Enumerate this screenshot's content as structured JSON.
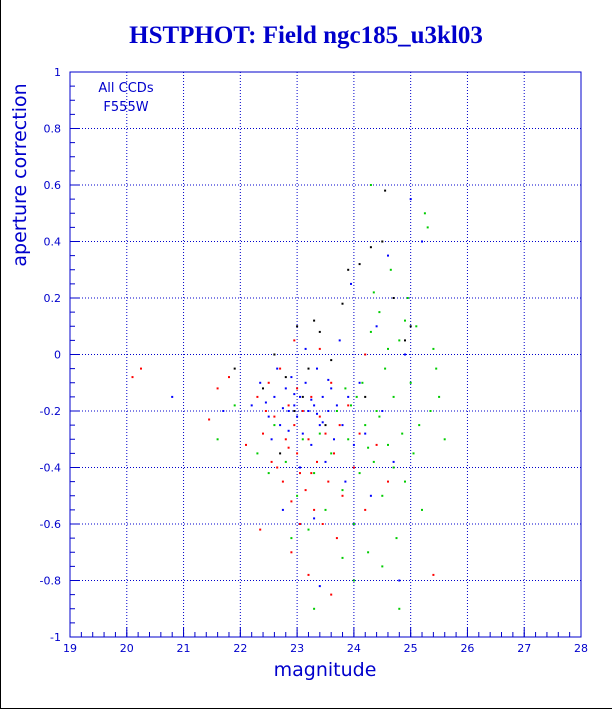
{
  "chart_data": {
    "type": "scatter",
    "title": "HSTPHOT: Field ngc185_u3kl03",
    "xlabel": "magnitude",
    "ylabel": "aperture correction",
    "xlim": [
      19,
      28
    ],
    "ylim": [
      -1,
      1
    ],
    "xticks": [
      "19",
      "20",
      "21",
      "22",
      "23",
      "24",
      "25",
      "26",
      "27",
      "28"
    ],
    "yticks": [
      "1",
      "0.8",
      "0.6",
      "0.4",
      "0.2",
      "0",
      "-0.2",
      "-0.4",
      "-0.6",
      "-0.8",
      "-1"
    ],
    "grid": true,
    "annotation": [
      "All CCDs",
      "F555W"
    ],
    "series": [
      {
        "color": "#ff0000",
        "values": [
          [
            20.1,
            -0.08
          ],
          [
            20.25,
            -0.05
          ],
          [
            21.45,
            -0.23
          ],
          [
            21.6,
            -0.12
          ],
          [
            21.8,
            -0.08
          ],
          [
            22.1,
            -0.32
          ],
          [
            22.3,
            -0.15
          ],
          [
            22.4,
            -0.28
          ],
          [
            22.5,
            -0.1
          ],
          [
            22.55,
            -0.38
          ],
          [
            22.6,
            -0.22
          ],
          [
            22.7,
            -0.05
          ],
          [
            22.75,
            -0.45
          ],
          [
            22.8,
            -0.3
          ],
          [
            22.85,
            -0.18
          ],
          [
            22.9,
            -0.52
          ],
          [
            22.95,
            -0.25
          ],
          [
            23.0,
            -0.35
          ],
          [
            23.0,
            -0.12
          ],
          [
            23.05,
            -0.42
          ],
          [
            23.1,
            -0.2
          ],
          [
            23.15,
            -0.48
          ],
          [
            23.2,
            -0.3
          ],
          [
            23.25,
            -0.15
          ],
          [
            23.3,
            -0.55
          ],
          [
            23.35,
            -0.38
          ],
          [
            23.4,
            -0.22
          ],
          [
            23.45,
            -0.6
          ],
          [
            23.5,
            -0.28
          ],
          [
            23.55,
            -0.45
          ],
          [
            23.6,
            -0.1
          ],
          [
            23.65,
            -0.35
          ],
          [
            23.7,
            -0.65
          ],
          [
            23.75,
            -0.25
          ],
          [
            23.8,
            -0.5
          ],
          [
            23.9,
            -0.18
          ],
          [
            24.0,
            -0.4
          ],
          [
            24.1,
            -0.28
          ],
          [
            24.2,
            -0.55
          ],
          [
            24.4,
            -0.32
          ],
          [
            24.6,
            -0.45
          ],
          [
            22.9,
            -0.7
          ],
          [
            23.2,
            -0.78
          ],
          [
            22.35,
            -0.62
          ],
          [
            23.6,
            -0.85
          ],
          [
            22.95,
            0.05
          ],
          [
            23.4,
            0.02
          ],
          [
            24.2,
            0.0
          ],
          [
            25.4,
            -0.78
          ],
          [
            22.65,
            -0.4
          ],
          [
            22.45,
            -0.2
          ],
          [
            23.05,
            -0.6
          ],
          [
            22.85,
            -0.33
          ],
          [
            23.25,
            -0.42
          ]
        ]
      },
      {
        "color": "#0000ff",
        "values": [
          [
            20.8,
            -0.15
          ],
          [
            21.7,
            -0.2
          ],
          [
            22.2,
            -0.18
          ],
          [
            22.35,
            -0.1
          ],
          [
            22.5,
            -0.22
          ],
          [
            22.6,
            -0.15
          ],
          [
            22.7,
            -0.25
          ],
          [
            22.8,
            -0.12
          ],
          [
            22.85,
            -0.2
          ],
          [
            22.9,
            -0.08
          ],
          [
            22.95,
            -0.18
          ],
          [
            23.0,
            -0.22
          ],
          [
            23.05,
            -0.15
          ],
          [
            23.1,
            -0.28
          ],
          [
            23.15,
            -0.1
          ],
          [
            23.2,
            -0.2
          ],
          [
            23.25,
            -0.32
          ],
          [
            23.3,
            -0.18
          ],
          [
            23.35,
            -0.05
          ],
          [
            23.4,
            -0.25
          ],
          [
            23.45,
            -0.15
          ],
          [
            23.5,
            -0.38
          ],
          [
            23.55,
            -0.2
          ],
          [
            23.6,
            -0.12
          ],
          [
            23.65,
            -0.3
          ],
          [
            23.7,
            -0.18
          ],
          [
            23.75,
            0.05
          ],
          [
            23.8,
            -0.25
          ],
          [
            23.85,
            -0.45
          ],
          [
            23.9,
            -0.15
          ],
          [
            23.95,
            0.25
          ],
          [
            24.0,
            -0.32
          ],
          [
            24.1,
            -0.1
          ],
          [
            24.2,
            -0.28
          ],
          [
            24.3,
            -0.5
          ],
          [
            24.4,
            0.1
          ],
          [
            24.5,
            -0.2
          ],
          [
            24.6,
            0.35
          ],
          [
            24.7,
            -0.38
          ],
          [
            24.9,
            0.0
          ],
          [
            25.0,
            0.55
          ],
          [
            25.2,
            0.4
          ],
          [
            22.75,
            -0.55
          ],
          [
            23.05,
            -0.4
          ],
          [
            23.3,
            -0.58
          ],
          [
            22.55,
            -0.3
          ],
          [
            22.65,
            -0.05
          ],
          [
            23.15,
            0.02
          ],
          [
            22.45,
            -0.17
          ],
          [
            22.95,
            -0.14
          ],
          [
            23.35,
            -0.21
          ],
          [
            23.55,
            -0.09
          ],
          [
            22.75,
            -0.19
          ],
          [
            23.25,
            -0.16
          ],
          [
            22.85,
            -0.27
          ],
          [
            23.45,
            -0.24
          ],
          [
            24.8,
            -0.8
          ],
          [
            23.4,
            -0.82
          ]
        ]
      },
      {
        "color": "#00cc00",
        "values": [
          [
            21.6,
            -0.3
          ],
          [
            21.9,
            -0.18
          ],
          [
            22.3,
            -0.35
          ],
          [
            22.5,
            -0.42
          ],
          [
            22.6,
            -0.25
          ],
          [
            22.8,
            -0.38
          ],
          [
            23.0,
            -0.5
          ],
          [
            23.1,
            -0.3
          ],
          [
            23.2,
            -0.62
          ],
          [
            23.3,
            -0.42
          ],
          [
            23.4,
            -0.28
          ],
          [
            23.5,
            -0.55
          ],
          [
            23.6,
            -0.35
          ],
          [
            23.7,
            -0.2
          ],
          [
            23.8,
            -0.48
          ],
          [
            23.9,
            -0.3
          ],
          [
            24.0,
            -0.6
          ],
          [
            24.05,
            -0.15
          ],
          [
            24.1,
            -0.42
          ],
          [
            24.2,
            -0.25
          ],
          [
            24.25,
            -0.7
          ],
          [
            24.3,
            0.08
          ],
          [
            24.35,
            -0.38
          ],
          [
            24.4,
            -0.2
          ],
          [
            24.45,
            0.15
          ],
          [
            24.5,
            -0.5
          ],
          [
            24.55,
            -0.05
          ],
          [
            24.6,
            -0.32
          ],
          [
            24.65,
            0.3
          ],
          [
            24.7,
            -0.15
          ],
          [
            24.75,
            -0.65
          ],
          [
            24.8,
            0.05
          ],
          [
            24.85,
            -0.28
          ],
          [
            24.9,
            -0.45
          ],
          [
            24.95,
            0.2
          ],
          [
            25.0,
            -0.1
          ],
          [
            25.05,
            -0.35
          ],
          [
            25.1,
            0.1
          ],
          [
            25.2,
            -0.55
          ],
          [
            25.3,
            0.45
          ],
          [
            25.35,
            -0.2
          ],
          [
            25.4,
            0.02
          ],
          [
            25.5,
            -0.15
          ],
          [
            25.6,
            -0.3
          ],
          [
            24.3,
            0.6
          ],
          [
            24.0,
            -0.8
          ],
          [
            23.3,
            -0.9
          ],
          [
            24.8,
            -0.9
          ],
          [
            24.5,
            -0.75
          ],
          [
            23.8,
            -0.72
          ],
          [
            22.9,
            -0.65
          ],
          [
            25.25,
            0.5
          ],
          [
            24.15,
            -0.1
          ],
          [
            24.45,
            -0.22
          ],
          [
            23.95,
            -0.18
          ],
          [
            24.7,
            -0.4
          ],
          [
            24.25,
            -0.33
          ],
          [
            25.15,
            -0.25
          ],
          [
            24.6,
            0.02
          ],
          [
            23.85,
            -0.12
          ],
          [
            25.45,
            -0.05
          ],
          [
            24.9,
            0.12
          ],
          [
            24.35,
            0.22
          ]
        ]
      },
      {
        "color": "#000000",
        "values": [
          [
            21.9,
            -0.05
          ],
          [
            22.4,
            -0.12
          ],
          [
            22.6,
            0.0
          ],
          [
            22.8,
            -0.08
          ],
          [
            23.0,
            0.1
          ],
          [
            23.2,
            -0.05
          ],
          [
            23.4,
            0.08
          ],
          [
            23.6,
            -0.02
          ],
          [
            23.8,
            0.18
          ],
          [
            23.9,
            0.3
          ],
          [
            24.1,
            0.32
          ],
          [
            24.3,
            0.38
          ],
          [
            24.5,
            0.4
          ],
          [
            24.7,
            0.2
          ],
          [
            24.9,
            0.05
          ],
          [
            23.1,
            -0.15
          ],
          [
            23.5,
            -0.25
          ],
          [
            22.95,
            -0.2
          ],
          [
            24.55,
            0.58
          ],
          [
            25.0,
            0.1
          ],
          [
            23.3,
            0.12
          ],
          [
            24.2,
            -0.15
          ],
          [
            22.7,
            -0.35
          ]
        ]
      }
    ]
  }
}
